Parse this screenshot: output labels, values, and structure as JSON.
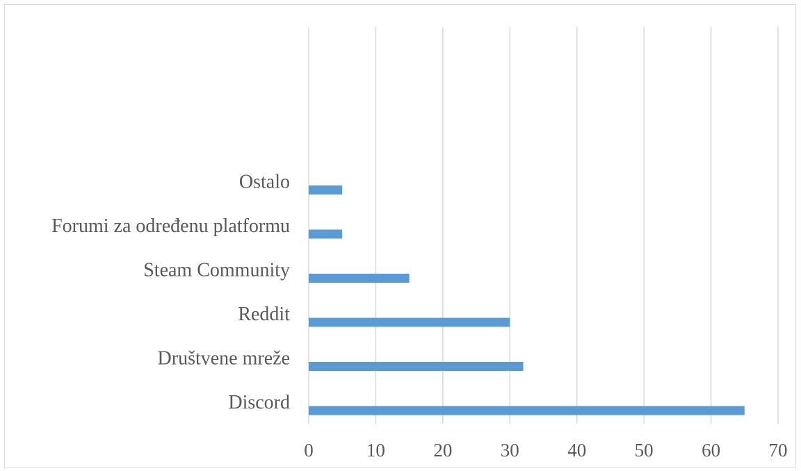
{
  "chart_data": {
    "type": "bar",
    "orientation": "horizontal",
    "categories": [
      "Discord",
      "Društvene mreže",
      "Reddit",
      "Steam Community",
      "Forumi za određenu platformu",
      "Ostalo"
    ],
    "values": [
      65,
      32,
      30,
      15,
      5,
      5
    ],
    "xlim": [
      0,
      70
    ],
    "x_ticks": [
      0,
      10,
      20,
      30,
      40,
      50,
      60,
      70
    ],
    "x_tick_labels": [
      "0",
      "10",
      "20",
      "30",
      "40",
      "50",
      "60",
      "70"
    ],
    "grid": true,
    "legend": "none",
    "colors": {
      "bar": "#5b9bd5",
      "grid": "#d9d9d9",
      "text": "#595959"
    }
  }
}
